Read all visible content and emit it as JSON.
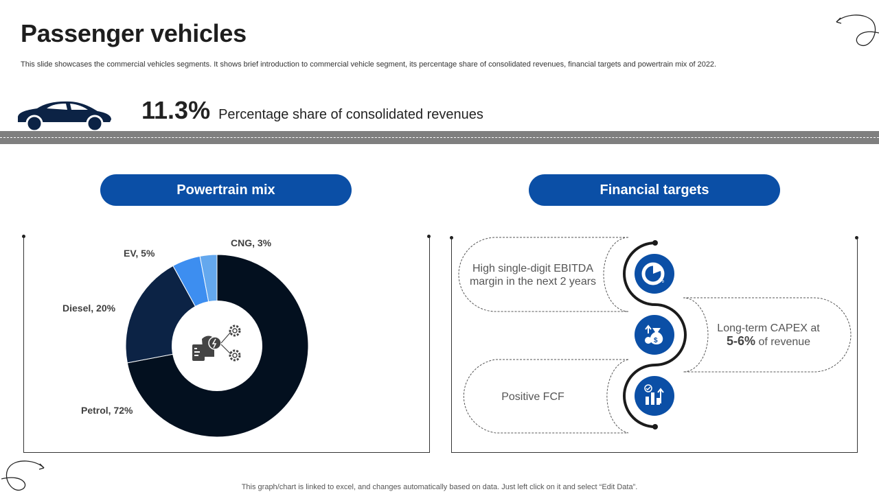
{
  "slide": {
    "title": "Passenger vehicles",
    "subtitle": "This slide showcases the commercial vehicles segments. It shows brief introduction to commercial vehicle segment, its percentage share of consolidated revenues, financial targets and powertrain mix of 2022.",
    "footer": "This graph/chart is linked to excel, and changes automatically based on data. Just left click on it and select “Edit Data”."
  },
  "stat": {
    "value": "11.3%",
    "label": "Percentage share of consolidated revenues"
  },
  "sections": {
    "powertrain": "Powertrain mix",
    "financial": "Financial targets"
  },
  "chart_data": {
    "type": "pie",
    "title": "Powertrain mix",
    "categories": [
      "Petrol",
      "Diesel",
      "EV",
      "CNG"
    ],
    "values": [
      72,
      20,
      5,
      3
    ],
    "labels": [
      "Petrol, 72%",
      "Diesel, 20%",
      "EV, 5%",
      "CNG, 3%"
    ],
    "donut": true,
    "colors": [
      "#03101f",
      "#0c2345",
      "#3d8ef0",
      "#64a8ee"
    ]
  },
  "targets": {
    "ebitda_line1": "High single-digit EBITDA",
    "ebitda_line2": "margin in the next 2 years",
    "capex_line1": "Long-term CAPEX at",
    "capex_value": "5-6%",
    "capex_suffix": "of revenue",
    "fcf": "Positive FCF"
  },
  "icons": [
    "car-icon",
    "powertrain-gears-icon",
    "pie-chart-icon",
    "money-bag-icon",
    "growth-chart-icon",
    "swirl-arrow-icon"
  ],
  "colors": {
    "accent": "#0b4fa6",
    "road": "#7f7f7f",
    "dark": "#03101f"
  }
}
